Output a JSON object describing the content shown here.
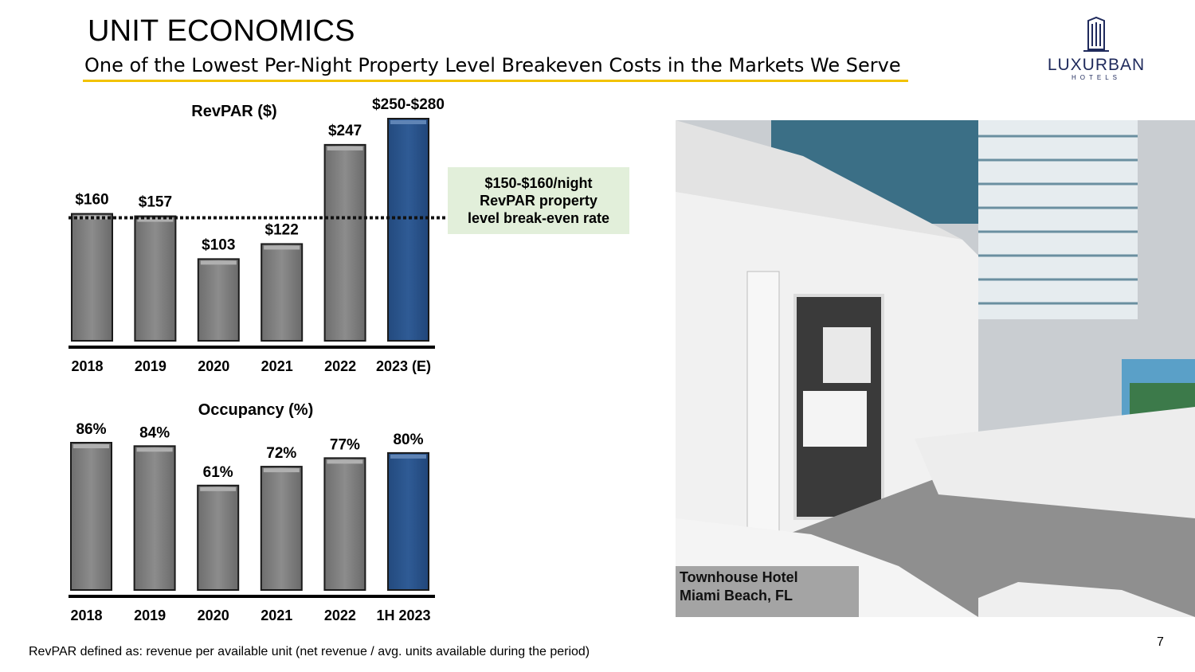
{
  "slide": {
    "title": "UNIT ECONOMICS",
    "subtitle": "One of the Lowest Per-Night Property Level Breakeven Costs in the Markets We Serve",
    "logo_text": "LUXURBAN",
    "logo_subtext": "HOTELS",
    "callout": [
      "$150-$160/night",
      "RevPAR property",
      "level break-even rate"
    ],
    "photo_caption": [
      "Townhouse Hotel",
      "Miami Beach, FL"
    ],
    "footnote": "RevPAR defined as: revenue per available unit (net revenue / avg. units available during the period)",
    "page_number": "7"
  },
  "colors": {
    "bar_gray": "#808080",
    "bar_blue": "#2b5389",
    "accent_rule": "#f2c200",
    "callout_bg": "#e2efda",
    "logo_navy": "#1f2a5c"
  },
  "chart_data": [
    {
      "type": "bar",
      "title": "RevPAR ($)",
      "categories": [
        "2018",
        "2019",
        "2020",
        "2021",
        "2022",
        "2023 (E)"
      ],
      "values": [
        160,
        157,
        103,
        122,
        247,
        280
      ],
      "value_range_last": [
        250,
        280
      ],
      "data_labels": [
        "$160",
        "$157",
        "$103",
        "$122",
        "$247",
        "$250-$280"
      ],
      "highlight_index": 5,
      "reference_line": {
        "value": 155,
        "style": "dotted",
        "range": [
          150,
          160
        ]
      },
      "ylim": [
        0,
        280
      ],
      "grid": false
    },
    {
      "type": "bar",
      "title": "Occupancy (%)",
      "categories": [
        "2018",
        "2019",
        "2020",
        "2021",
        "2022",
        "1H 2023"
      ],
      "values": [
        86,
        84,
        61,
        72,
        77,
        80
      ],
      "data_labels": [
        "86%",
        "84%",
        "61%",
        "72%",
        "77%",
        "80%"
      ],
      "highlight_index": 5,
      "ylim": [
        0,
        86
      ],
      "grid": false
    }
  ]
}
